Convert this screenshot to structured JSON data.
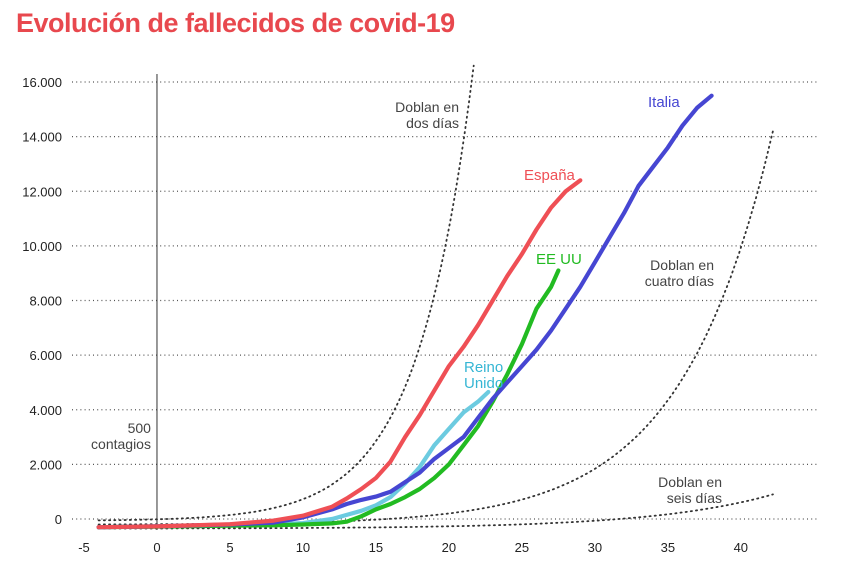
{
  "title": "Evolución de fallecidos de covid-19",
  "chart_data": {
    "type": "line",
    "title": "Evolución de fallecidos de covid-19",
    "xlabel": "",
    "ylabel": "",
    "xlim": [
      -5.5,
      42.5
    ],
    "ylim": [
      -400,
      16500
    ],
    "x_ticks": [
      -5,
      0,
      5,
      10,
      15,
      20,
      25,
      30,
      35,
      40
    ],
    "x_tick_labels": [
      "-5",
      "0",
      "5",
      "10",
      "15",
      "20",
      "25",
      "30",
      "35",
      "40"
    ],
    "y_ticks": [
      0,
      2000,
      4000,
      6000,
      8000,
      10000,
      12000,
      14000,
      16000
    ],
    "y_tick_labels": [
      "0",
      "2.000",
      "4.000",
      "6.000",
      "8.000",
      "10.000",
      "12.000",
      "14.000",
      "16.000"
    ],
    "grid": "horizontal-dotted",
    "reference_line": {
      "x": 0,
      "label_line1": "500",
      "label_line2": "contagios"
    },
    "series": [
      {
        "name": "Italia",
        "color": "#4646d2",
        "points": [
          [
            -4,
            -300
          ],
          [
            0,
            -270
          ],
          [
            5,
            -200
          ],
          [
            8,
            -130
          ],
          [
            10,
            60
          ],
          [
            12,
            350
          ],
          [
            13,
            550
          ],
          [
            14,
            700
          ],
          [
            15,
            820
          ],
          [
            16,
            1000
          ],
          [
            17,
            1350
          ],
          [
            18,
            1700
          ],
          [
            19,
            2200
          ],
          [
            20,
            2600
          ],
          [
            21,
            3000
          ],
          [
            22,
            3700
          ],
          [
            23,
            4400
          ],
          [
            24,
            5000
          ],
          [
            25,
            5600
          ],
          [
            26,
            6200
          ],
          [
            27,
            6900
          ],
          [
            28,
            7700
          ],
          [
            29,
            8500
          ],
          [
            30,
            9400
          ],
          [
            31,
            10300
          ],
          [
            32,
            11200
          ],
          [
            33,
            12200
          ],
          [
            34,
            12900
          ],
          [
            35,
            13600
          ],
          [
            36,
            14400
          ],
          [
            37,
            15050
          ],
          [
            38,
            15500
          ]
        ]
      },
      {
        "name": "España",
        "color": "#ef4f55",
        "points": [
          [
            -4,
            -300
          ],
          [
            0,
            -270
          ],
          [
            5,
            -190
          ],
          [
            8,
            -60
          ],
          [
            10,
            120
          ],
          [
            12,
            450
          ],
          [
            13,
            750
          ],
          [
            14,
            1100
          ],
          [
            15,
            1500
          ],
          [
            16,
            2100
          ],
          [
            17,
            3000
          ],
          [
            18,
            3800
          ],
          [
            19,
            4700
          ],
          [
            20,
            5600
          ],
          [
            21,
            6300
          ],
          [
            22,
            7100
          ],
          [
            23,
            8000
          ],
          [
            24,
            8900
          ],
          [
            25,
            9700
          ],
          [
            26,
            10600
          ],
          [
            27,
            11400
          ],
          [
            28,
            12000
          ],
          [
            29,
            12400
          ]
        ]
      },
      {
        "name": "EE UU",
        "color": "#22bb22",
        "points": [
          [
            -4,
            -300
          ],
          [
            0,
            -280
          ],
          [
            5,
            -240
          ],
          [
            8,
            -230
          ],
          [
            10,
            -200
          ],
          [
            12,
            -160
          ],
          [
            13,
            -100
          ],
          [
            14,
            100
          ],
          [
            15,
            350
          ],
          [
            16,
            550
          ],
          [
            17,
            800
          ],
          [
            18,
            1100
          ],
          [
            19,
            1500
          ],
          [
            20,
            2000
          ],
          [
            21,
            2700
          ],
          [
            22,
            3400
          ],
          [
            23,
            4300
          ],
          [
            24,
            5300
          ],
          [
            25,
            6400
          ],
          [
            26,
            7700
          ],
          [
            27,
            8500
          ],
          [
            27.5,
            9100
          ]
        ]
      },
      {
        "name": "Reino Unido",
        "name_line1": "Reino",
        "name_line2": "Unido",
        "color": "#6ccbe0",
        "points": [
          [
            -4,
            -300
          ],
          [
            0,
            -270
          ],
          [
            5,
            -220
          ],
          [
            8,
            -200
          ],
          [
            10,
            -150
          ],
          [
            12,
            0
          ],
          [
            13,
            150
          ],
          [
            14,
            300
          ],
          [
            15,
            500
          ],
          [
            16,
            800
          ],
          [
            17,
            1300
          ],
          [
            18,
            1900
          ],
          [
            19,
            2700
          ],
          [
            20,
            3300
          ],
          [
            21,
            3900
          ],
          [
            22,
            4300
          ],
          [
            22.7,
            4650
          ]
        ]
      }
    ],
    "reference_curves": [
      {
        "label_line1": "Doblan en",
        "label_line2": "dos días",
        "start_x": -4,
        "start_y": -50,
        "end_x": 21.7,
        "end_y": 16600,
        "k": 0.26
      },
      {
        "label_line1": "Doblan en",
        "label_line2": "cuatro días",
        "start_x": -4,
        "start_y": -200,
        "end_x": 42.2,
        "end_y": 14200,
        "k": 0.16
      },
      {
        "label_line1": "Doblan en",
        "label_line2": "seis días",
        "start_x": -4,
        "start_y": -350,
        "end_x": 42.2,
        "end_y": 900,
        "k": 0.12
      }
    ]
  }
}
